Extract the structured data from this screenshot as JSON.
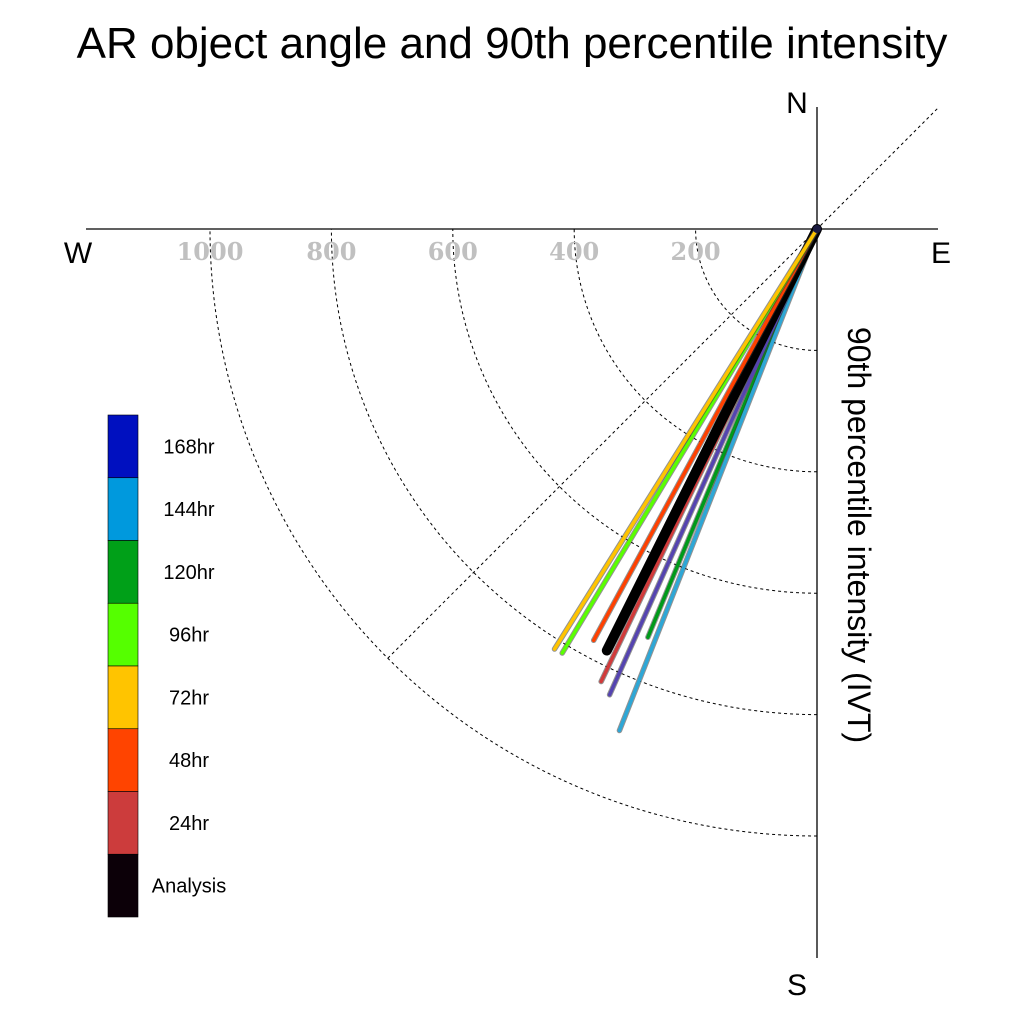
{
  "chart_data": {
    "type": "line",
    "title": "AR object angle and 90th percentile intensity",
    "ylabel": "90th percentile intensity (IVT)",
    "compass": {
      "north": "N",
      "south": "S",
      "west": "W",
      "east": "E"
    },
    "radial_ticks": [
      200,
      400,
      600,
      800,
      1000
    ],
    "radial_max": 1000,
    "series": [
      {
        "name": "120hr",
        "angle_deg": 202.5,
        "intensity": 728,
        "color": "#009a1a"
      },
      {
        "name": "144hr",
        "angle_deg": 201.5,
        "intensity": 888,
        "color": "#2ea7d6"
      },
      {
        "name": "168hr",
        "angle_deg": 204.0,
        "intensity": 840,
        "color": "#5544b0"
      },
      {
        "name": "24hr",
        "angle_deg": 205.5,
        "intensity": 826,
        "color": "#d13b3b"
      },
      {
        "name": "Analysis",
        "angle_deg": 206.5,
        "intensity": 776,
        "color": "#000000"
      },
      {
        "name": "48hr",
        "angle_deg": 208.5,
        "intensity": 771,
        "color": "#ff4000"
      },
      {
        "name": "96hr",
        "angle_deg": 211.0,
        "intensity": 815,
        "color": "#5aff00"
      },
      {
        "name": "72hr",
        "angle_deg": 212.0,
        "intensity": 816,
        "color": "#ffc400"
      }
    ],
    "legend": [
      {
        "label": "168hr",
        "color": "#0010c0"
      },
      {
        "label": "144hr",
        "color": "#0099dd"
      },
      {
        "label": "120hr",
        "color": "#00a018"
      },
      {
        "label": "96hr",
        "color": "#55ff00"
      },
      {
        "label": "72hr",
        "color": "#ffc400"
      },
      {
        "label": "48hr",
        "color": "#ff4400"
      },
      {
        "label": "24hr",
        "color": "#cc3c3c"
      },
      {
        "label": "Analysis",
        "color": "#0c0008"
      }
    ]
  }
}
